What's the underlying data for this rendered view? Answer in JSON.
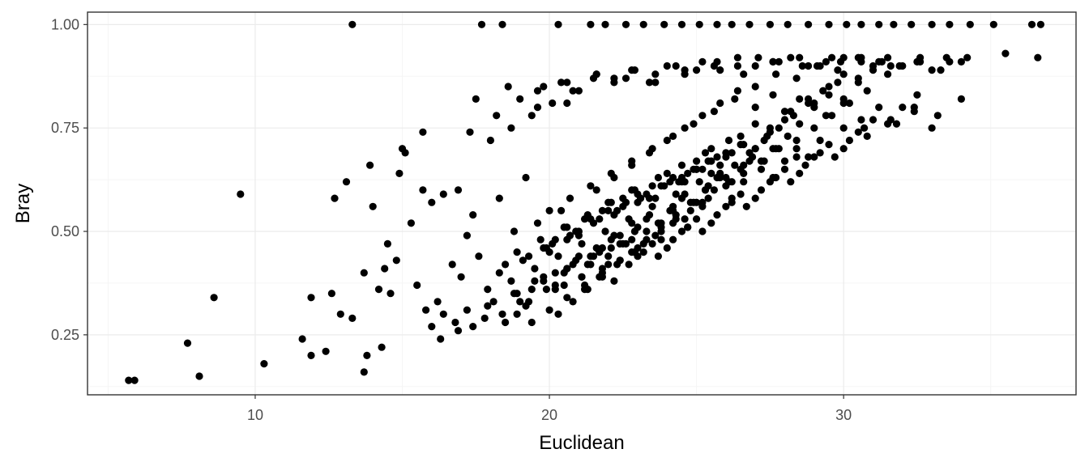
{
  "chart_data": {
    "type": "scatter",
    "title": "",
    "xlabel": "Euclidean",
    "ylabel": "Bray",
    "xlim": [
      4.3,
      37.9
    ],
    "ylim": [
      0.105,
      1.03
    ],
    "x_ticks": [
      10,
      20,
      30
    ],
    "x_tick_labels": [
      "10",
      "20",
      "30"
    ],
    "y_ticks": [
      0.25,
      0.5,
      0.75,
      1.0
    ],
    "y_tick_labels": [
      "0.25",
      "0.50",
      "0.75",
      "1.00"
    ],
    "grid": true,
    "legend": "none",
    "colors": {
      "point": "#000000",
      "grid_major": "#ebebeb",
      "grid_minor": "#f5f5f5",
      "panel_border": "#333333"
    },
    "x": [
      5.7,
      5.9,
      7.7,
      8.1,
      8.6,
      9.5,
      10.3,
      11.6,
      11.9,
      11.9,
      12.4,
      12.6,
      12.7,
      12.9,
      13.1,
      13.3,
      13.3,
      13.7,
      13.7,
      13.8,
      13.9,
      14.0,
      14.2,
      14.3,
      14.4,
      14.5,
      14.6,
      14.8,
      14.9,
      15.0,
      15.1,
      15.3,
      15.5,
      15.7,
      15.7,
      15.8,
      16.0,
      16.2,
      16.4,
      16.7,
      16.9,
      17.0,
      17.2,
      17.3,
      17.4,
      17.6,
      17.7,
      18.3,
      18.4,
      18.9,
      19.2,
      19.6,
      20.3,
      20.6,
      21.4,
      21.9,
      22.6,
      23.2,
      23.9,
      24.5,
      25.1,
      25.7,
      26.2,
      26.8,
      27.5,
      28.1,
      28.8,
      29.5,
      30.1,
      30.6,
      31.2,
      31.7,
      32.3,
      33.0,
      33.6,
      34.3,
      35.1,
      36.4,
      36.7,
      16.0,
      16.4,
      16.9,
      17.2,
      17.8,
      18.1,
      18.5,
      18.8,
      19.2,
      19.5,
      19.9,
      20.2,
      20.5,
      20.8,
      21.1,
      21.4,
      21.8,
      22.1,
      22.4,
      22.8,
      16.3,
      16.8,
      17.4,
      17.9,
      18.4,
      18.9,
      19.3,
      19.8,
      20.2,
      20.6,
      21.1,
      21.5,
      22.0,
      22.4,
      22.9,
      23.3,
      23.8,
      24.3,
      24.7,
      25.2,
      17.9,
      18.3,
      18.7,
      19.1,
      19.5,
      19.9,
      20.3,
      20.7,
      21.1,
      21.5,
      21.9,
      22.3,
      22.7,
      23.1,
      23.5,
      23.9,
      24.3,
      24.7,
      25.1,
      25.5,
      18.5,
      18.9,
      19.3,
      19.7,
      20.1,
      20.5,
      20.9,
      21.3,
      21.7,
      22.1,
      22.5,
      22.9,
      23.3,
      23.7,
      24.1,
      24.5,
      24.9,
      25.3,
      25.7,
      26.1,
      19.0,
      19.4,
      19.8,
      20.2,
      20.6,
      21.0,
      21.4,
      21.8,
      22.2,
      22.6,
      23.0,
      23.4,
      23.8,
      24.2,
      24.6,
      25.0,
      25.4,
      25.8,
      26.2,
      26.6,
      19.8,
      20.2,
      20.6,
      21.0,
      21.4,
      21.8,
      22.2,
      22.6,
      23.0,
      23.4,
      23.8,
      24.2,
      24.6,
      25.0,
      25.4,
      25.8,
      26.2,
      26.6,
      27.0,
      27.4,
      20.5,
      20.9,
      21.3,
      21.7,
      22.1,
      22.5,
      22.9,
      23.3,
      23.7,
      24.1,
      24.5,
      24.9,
      25.3,
      25.7,
      26.1,
      26.5,
      26.9,
      27.3,
      27.7,
      28.1,
      21.2,
      21.7,
      22.2,
      22.7,
      23.2,
      23.7,
      24.2,
      24.7,
      25.2,
      25.7,
      26.2,
      26.7,
      27.2,
      27.7,
      28.2,
      28.7,
      29.2,
      29.7,
      30.2,
      30.7,
      22.0,
      22.5,
      23.0,
      23.5,
      24.0,
      24.5,
      25.0,
      25.5,
      26.0,
      26.5,
      27.0,
      27.5,
      28.0,
      28.5,
      29.0,
      29.5,
      30.0,
      30.5,
      31.0,
      31.5,
      23.0,
      23.5,
      24.0,
      24.5,
      25.0,
      25.5,
      26.0,
      26.5,
      27.0,
      27.5,
      28.0,
      28.5,
      29.0,
      29.5,
      30.0,
      30.5,
      31.0,
      31.5,
      32.0,
      32.5,
      24.5,
      25.0,
      25.5,
      26.0,
      26.5,
      27.0,
      27.5,
      28.0,
      28.5,
      29.0,
      29.5,
      30.0,
      30.5,
      31.0,
      31.5,
      32.0,
      32.5,
      33.0,
      33.5,
      34.0,
      18.2,
      19.0,
      19.8,
      20.4,
      21.0,
      21.6,
      22.2,
      22.8,
      23.4,
      24.0,
      24.6,
      25.2,
      25.8,
      26.4,
      27.0,
      27.6,
      28.2,
      28.8,
      29.4,
      30.0,
      17.5,
      18.6,
      19.6,
      20.6,
      21.6,
      22.6,
      23.6,
      24.6,
      25.6,
      26.6,
      27.6,
      28.6,
      29.6,
      30.6,
      31.6,
      32.6,
      33.6,
      34.2,
      35.5,
      36.6,
      18.8,
      19.6,
      20.4,
      21.2,
      22.0,
      22.8,
      23.6,
      24.4,
      25.2,
      26.0,
      26.8,
      27.6,
      28.4,
      29.2,
      30.0,
      30.8,
      31.6,
      32.4,
      33.2,
      34.0,
      19.4,
      20.0,
      20.6,
      21.2,
      21.8,
      22.4,
      23.0,
      23.6,
      24.2,
      24.8,
      25.4,
      26.0,
      26.6,
      27.2,
      27.8,
      28.4,
      29.0,
      29.6,
      30.2,
      30.8,
      20.3,
      20.8,
      21.3,
      21.8,
      22.3,
      22.8,
      23.3,
      23.8,
      24.3,
      24.8,
      25.3,
      25.8,
      26.3,
      26.8,
      27.3,
      27.8,
      28.3,
      28.8,
      29.3,
      29.8,
      20.0,
      20.7,
      21.4,
      22.1,
      22.8,
      23.5,
      24.2,
      24.9,
      25.6,
      26.3,
      27.0,
      27.7,
      28.4,
      29.1,
      29.8,
      30.5,
      31.2,
      31.9,
      32.6,
      33.3,
      21.6,
      22.2,
      22.8,
      23.4,
      24.0,
      24.6,
      25.2,
      25.8,
      26.4,
      27.0,
      27.6,
      28.2,
      28.8,
      29.4,
      30.0,
      30.6,
      31.2,
      31.8,
      32.4,
      33.0,
      18.0,
      18.7,
      19.4,
      20.1,
      20.8,
      21.5,
      22.2,
      22.9,
      23.6,
      24.3,
      25.0,
      25.7,
      26.4,
      27.1,
      27.8,
      28.5,
      29.2,
      29.9,
      30.6,
      31.3,
      20.0,
      20.6,
      21.0,
      21.6,
      22.0,
      22.4,
      22.8,
      23.2,
      23.8,
      24.2,
      24.6,
      25.2,
      25.6,
      26.2,
      26.6,
      27.2,
      27.6,
      28.0,
      28.4,
      28.8
    ],
    "y": [
      0.14,
      0.14,
      0.23,
      0.15,
      0.34,
      0.59,
      0.18,
      0.24,
      0.2,
      0.34,
      0.21,
      0.35,
      0.58,
      0.3,
      0.62,
      0.29,
      1.0,
      0.4,
      0.16,
      0.2,
      0.66,
      0.56,
      0.36,
      0.22,
      0.41,
      0.47,
      0.35,
      0.43,
      0.64,
      0.7,
      0.69,
      0.52,
      0.37,
      0.74,
      0.6,
      0.31,
      0.57,
      0.33,
      0.59,
      0.42,
      0.6,
      0.39,
      0.49,
      0.74,
      0.54,
      0.44,
      1.0,
      0.58,
      1.0,
      0.3,
      0.63,
      0.84,
      1.0,
      0.81,
      1.0,
      1.0,
      1.0,
      1.0,
      1.0,
      1.0,
      1.0,
      1.0,
      1.0,
      1.0,
      1.0,
      1.0,
      1.0,
      1.0,
      1.0,
      1.0,
      1.0,
      1.0,
      1.0,
      1.0,
      1.0,
      1.0,
      1.0,
      1.0,
      1.0,
      0.27,
      0.3,
      0.26,
      0.31,
      0.29,
      0.33,
      0.28,
      0.35,
      0.32,
      0.38,
      0.36,
      0.4,
      0.37,
      0.42,
      0.39,
      0.44,
      0.41,
      0.46,
      0.43,
      0.48,
      0.24,
      0.28,
      0.27,
      0.32,
      0.3,
      0.35,
      0.33,
      0.38,
      0.36,
      0.41,
      0.39,
      0.44,
      0.42,
      0.47,
      0.45,
      0.5,
      0.48,
      0.53,
      0.51,
      0.56,
      0.36,
      0.4,
      0.38,
      0.43,
      0.41,
      0.46,
      0.44,
      0.49,
      0.47,
      0.52,
      0.5,
      0.55,
      0.53,
      0.58,
      0.56,
      0.61,
      0.59,
      0.64,
      0.62,
      0.67,
      0.42,
      0.45,
      0.44,
      0.48,
      0.47,
      0.51,
      0.5,
      0.54,
      0.53,
      0.57,
      0.56,
      0.6,
      0.59,
      0.63,
      0.62,
      0.66,
      0.65,
      0.69,
      0.68,
      0.72,
      0.33,
      0.36,
      0.39,
      0.37,
      0.41,
      0.44,
      0.42,
      0.46,
      0.49,
      0.47,
      0.51,
      0.54,
      0.52,
      0.56,
      0.59,
      0.57,
      0.61,
      0.64,
      0.62,
      0.66,
      0.46,
      0.48,
      0.51,
      0.49,
      0.53,
      0.55,
      0.54,
      0.57,
      0.59,
      0.58,
      0.61,
      0.63,
      0.62,
      0.65,
      0.67,
      0.66,
      0.69,
      0.71,
      0.7,
      0.73,
      0.4,
      0.43,
      0.42,
      0.45,
      0.48,
      0.47,
      0.5,
      0.53,
      0.52,
      0.55,
      0.58,
      0.57,
      0.6,
      0.63,
      0.62,
      0.65,
      0.68,
      0.67,
      0.7,
      0.73,
      0.36,
      0.39,
      0.38,
      0.42,
      0.45,
      0.44,
      0.48,
      0.51,
      0.5,
      0.54,
      0.57,
      0.56,
      0.6,
      0.63,
      0.62,
      0.66,
      0.69,
      0.68,
      0.72,
      0.75,
      0.55,
      0.58,
      0.57,
      0.61,
      0.64,
      0.63,
      0.67,
      0.7,
      0.69,
      0.73,
      0.76,
      0.75,
      0.79,
      0.82,
      0.81,
      0.85,
      0.88,
      0.87,
      0.9,
      0.92,
      0.44,
      0.47,
      0.46,
      0.5,
      0.53,
      0.52,
      0.56,
      0.59,
      0.58,
      0.62,
      0.65,
      0.64,
      0.68,
      0.71,
      0.7,
      0.74,
      0.77,
      0.76,
      0.8,
      0.83,
      0.62,
      0.65,
      0.64,
      0.68,
      0.71,
      0.7,
      0.74,
      0.77,
      0.76,
      0.8,
      0.83,
      0.82,
      0.86,
      0.89,
      0.88,
      0.9,
      0.91,
      0.89,
      0.92,
      0.91,
      0.78,
      0.82,
      0.85,
      0.86,
      0.84,
      0.88,
      0.87,
      0.89,
      0.86,
      0.9,
      0.88,
      0.91,
      0.89,
      0.92,
      0.9,
      0.91,
      0.92,
      0.9,
      0.91,
      0.92,
      0.82,
      0.85,
      0.8,
      0.86,
      0.88,
      0.87,
      0.86,
      0.89,
      0.9,
      0.88,
      0.91,
      0.9,
      0.92,
      0.91,
      0.9,
      0.92,
      0.91,
      0.92,
      0.93,
      0.92,
      0.5,
      0.52,
      0.55,
      0.53,
      0.57,
      0.6,
      0.58,
      0.62,
      0.65,
      0.63,
      0.67,
      0.7,
      0.68,
      0.72,
      0.75,
      0.73,
      0.77,
      0.8,
      0.78,
      0.82,
      0.28,
      0.31,
      0.34,
      0.37,
      0.4,
      0.43,
      0.46,
      0.49,
      0.52,
      0.55,
      0.58,
      0.61,
      0.64,
      0.67,
      0.7,
      0.72,
      0.75,
      0.78,
      0.81,
      0.84,
      0.3,
      0.33,
      0.36,
      0.39,
      0.42,
      0.45,
      0.48,
      0.51,
      0.54,
      0.57,
      0.6,
      0.63,
      0.66,
      0.69,
      0.72,
      0.75,
      0.78,
      0.81,
      0.84,
      0.86,
      0.55,
      0.58,
      0.61,
      0.64,
      0.67,
      0.7,
      0.73,
      0.76,
      0.79,
      0.82,
      0.85,
      0.88,
      0.87,
      0.9,
      0.89,
      0.92,
      0.91,
      0.9,
      0.91,
      0.89,
      0.6,
      0.63,
      0.66,
      0.69,
      0.72,
      0.75,
      0.78,
      0.81,
      0.84,
      0.8,
      0.83,
      0.79,
      0.82,
      0.78,
      0.81,
      0.77,
      0.8,
      0.76,
      0.79,
      0.75,
      0.72,
      0.75,
      0.78,
      0.81,
      0.84,
      0.87,
      0.86,
      0.89,
      0.88,
      0.9,
      0.89,
      0.91,
      0.9,
      0.92,
      0.91,
      0.92,
      0.9,
      0.91,
      0.92,
      0.91,
      0.45,
      0.48,
      0.5,
      0.46,
      0.44,
      0.49,
      0.52,
      0.47,
      0.5,
      0.55,
      0.53,
      0.57,
      0.6,
      0.58,
      0.62,
      0.65,
      0.63,
      0.67,
      0.7,
      0.68
    ]
  }
}
